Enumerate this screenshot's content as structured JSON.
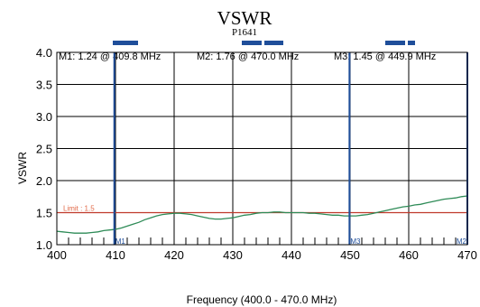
{
  "chart_data": {
    "type": "line",
    "title": "VSWR",
    "subtitle": "P1641",
    "xlabel": "Frequency (400.0 - 470.0 MHz)",
    "ylabel": "VSWR",
    "xlim": [
      400,
      470
    ],
    "ylim": [
      1.0,
      4.0
    ],
    "x_ticks": [
      400,
      410,
      420,
      430,
      440,
      450,
      460,
      470
    ],
    "y_ticks": [
      "1.0",
      "1.5",
      "2.0",
      "2.5",
      "3.0",
      "3.5",
      "4.0"
    ],
    "grid": true,
    "limit": {
      "label": "Limit : 1.5",
      "value": 1.5
    },
    "marker_readouts": [
      {
        "text": "M1: 1.24  @ 409.8 MHz"
      },
      {
        "text": "M2: 1.76  @ 470.0 MHz"
      },
      {
        "text": "M3: 1.45  @ 449.9 MHz"
      }
    ],
    "markers": [
      {
        "label": "M1",
        "x": 409.8
      },
      {
        "label": "M3",
        "x": 449.9
      },
      {
        "label": "M2",
        "x": 470.0
      }
    ],
    "series": [
      {
        "x": [
          400,
          401,
          402,
          403,
          404,
          405,
          406,
          407,
          408,
          409,
          410,
          411,
          412,
          413,
          414,
          415,
          416,
          417,
          418,
          419,
          420,
          421,
          422,
          423,
          424,
          425,
          426,
          427,
          428,
          429,
          430,
          431,
          432,
          433,
          434,
          435,
          436,
          437,
          438,
          439,
          440,
          441,
          442,
          443,
          444,
          445,
          446,
          447,
          448,
          449,
          450,
          451,
          452,
          453,
          454,
          455,
          456,
          457,
          458,
          459,
          460,
          461,
          462,
          463,
          464,
          465,
          466,
          467,
          468,
          469,
          470
        ],
        "values": [
          1.21,
          1.2,
          1.19,
          1.18,
          1.18,
          1.18,
          1.19,
          1.2,
          1.22,
          1.23,
          1.24,
          1.26,
          1.29,
          1.32,
          1.35,
          1.39,
          1.42,
          1.45,
          1.47,
          1.48,
          1.49,
          1.49,
          1.48,
          1.47,
          1.45,
          1.43,
          1.41,
          1.4,
          1.4,
          1.41,
          1.42,
          1.44,
          1.46,
          1.47,
          1.49,
          1.5,
          1.5,
          1.51,
          1.51,
          1.5,
          1.5,
          1.5,
          1.5,
          1.49,
          1.49,
          1.48,
          1.47,
          1.46,
          1.46,
          1.45,
          1.45,
          1.45,
          1.46,
          1.47,
          1.49,
          1.51,
          1.53,
          1.55,
          1.57,
          1.59,
          1.6,
          1.62,
          1.63,
          1.65,
          1.67,
          1.69,
          1.71,
          1.72,
          1.73,
          1.75,
          1.76
        ]
      }
    ],
    "colors": {
      "series": "#2e8b57",
      "limit": "#c0392b",
      "markers": "#1f4e9a",
      "limit_text": "#e26b4a"
    }
  }
}
